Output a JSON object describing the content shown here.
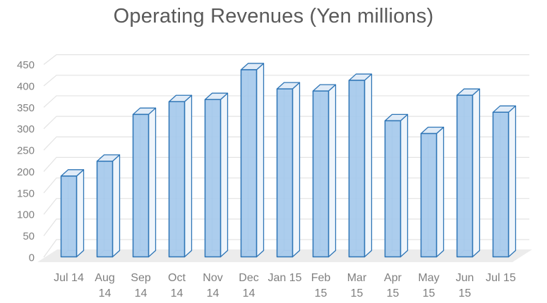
{
  "title": "Operating Revenues (Yen millions)",
  "colors": {
    "background": "#FFFFFF",
    "title": "#595959",
    "axis_label": "#7F7F7F",
    "gridline": "#E3E3E3",
    "floor": "#ECECEC",
    "bar_border": "#2E75B6",
    "bar_front": "#A5C9EC",
    "bar_top": "#E0EBF7",
    "bar_side": "#EFF5FB"
  },
  "chart_data": {
    "type": "bar",
    "subtype": "3d-column",
    "title": "Operating Revenues (Yen millions)",
    "categories": [
      "Jul 14",
      "Aug 14",
      "Sep 14",
      "Oct 14",
      "Nov 14",
      "Dec 14",
      "Jan 15",
      "Feb 15",
      "Mar 15",
      "Apr 15",
      "May 15",
      "Jun 15",
      "Jul 15"
    ],
    "category_display_lines": [
      [
        "Jul 14"
      ],
      [
        "Aug",
        "14"
      ],
      [
        "Sep",
        "14"
      ],
      [
        "Oct",
        "14"
      ],
      [
        "Nov",
        "14"
      ],
      [
        "Dec",
        "14"
      ],
      [
        "Jan 15"
      ],
      [
        "Feb",
        "15"
      ],
      [
        "Mar",
        "15"
      ],
      [
        "Apr",
        "15"
      ],
      [
        "May",
        "15"
      ],
      [
        "Jun",
        "15"
      ],
      [
        "Jul 15"
      ]
    ],
    "values": [
      190,
      225,
      335,
      365,
      370,
      440,
      395,
      390,
      415,
      320,
      290,
      380,
      340
    ],
    "xlabel": "",
    "ylabel": "",
    "ylim": [
      0,
      450
    ],
    "ytick_interval": 50,
    "yticks": [
      0,
      50,
      100,
      150,
      200,
      250,
      300,
      350,
      400,
      450
    ],
    "grid": true,
    "legend": false,
    "series_name": "Operating Revenues"
  }
}
